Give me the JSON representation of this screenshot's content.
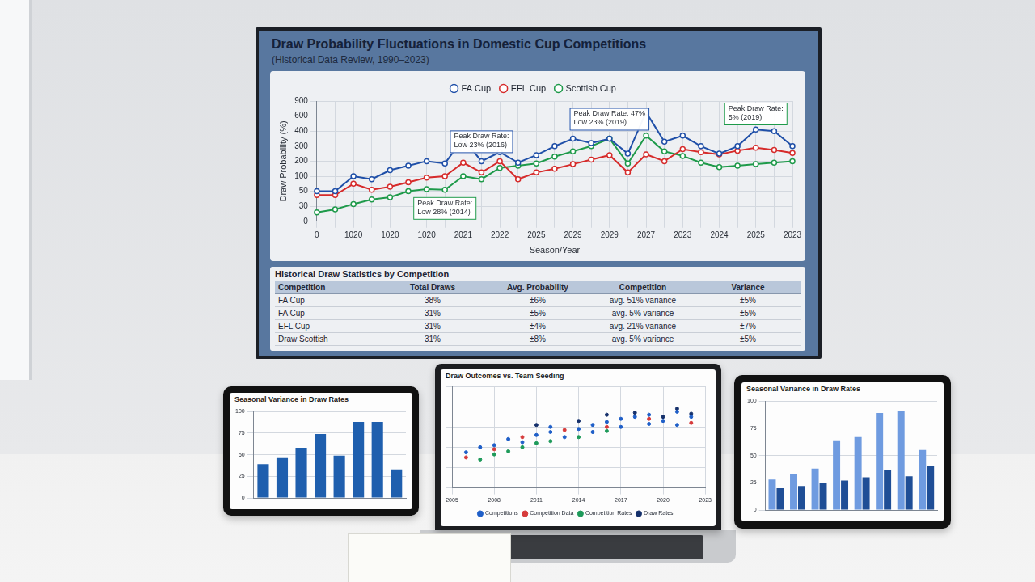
{
  "chart_data": [
    {
      "type": "line",
      "title": "Draw Probability Fluctuations in Domestic Cup Competitions",
      "subtitle": "(Historical Data Review, 1990–2023)",
      "x_label": "Season/Year",
      "y_label": "Draw Probability (%)",
      "categories": [
        "0",
        null,
        "1020",
        null,
        "1020",
        null,
        "1020",
        null,
        "2021",
        null,
        "2022",
        null,
        "2025",
        null,
        "2029",
        null,
        "2029",
        null,
        "2027",
        null,
        "2023",
        null,
        "2024",
        null,
        "2025",
        null,
        "2023"
      ],
      "series": [
        {
          "name": "FA Cup",
          "color": "#1f4fa8",
          "values": [
            50,
            50,
            100,
            90,
            140,
            170,
            200,
            185,
            350,
            200,
            260,
            190,
            240,
            300,
            350,
            320,
            350,
            250,
            675,
            330,
            370,
            300,
            250,
            300,
            420,
            400,
            300
          ]
        },
        {
          "name": "EFL Cup",
          "color": "#d62b2b",
          "values": [
            45,
            45,
            75,
            55,
            65,
            80,
            95,
            100,
            190,
            125,
            200,
            90,
            125,
            150,
            180,
            210,
            240,
            125,
            245,
            200,
            280,
            260,
            245,
            270,
            290,
            275,
            255
          ]
        },
        {
          "name": "Scottish Cup",
          "color": "#1e9a4a",
          "values": [
            18,
            24,
            33,
            39,
            42,
            50,
            57,
            55,
            100,
            90,
            155,
            170,
            185,
            230,
            265,
            300,
            350,
            185,
            370,
            265,
            235,
            190,
            160,
            170,
            180,
            190,
            200
          ]
        }
      ],
      "ylim": [
        0,
        900
      ],
      "yticks": [
        0,
        30,
        50,
        100,
        200,
        300,
        400,
        600,
        900
      ],
      "grid": true,
      "legend": "top",
      "marker": "circle",
      "annotations": [
        [
          "Peak Draw Rate:",
          "Low 23% (2016)"
        ],
        [
          "Peak Draw Rate: 47%",
          "Low 23% (2019)"
        ],
        [
          "Peak Draw Rate:",
          "5% (2019)"
        ],
        [
          "Peak Draw Rate:",
          "Low 28% (2014)"
        ]
      ]
    },
    {
      "type": "bar",
      "title": "Seasonal Variance in Draw Rates",
      "categories": [
        null,
        null,
        null,
        null,
        null,
        null,
        null,
        null
      ],
      "values": [
        39,
        47,
        58,
        74,
        49,
        88,
        88,
        33
      ],
      "color": "#1f5fae",
      "ylim": [
        0,
        100
      ],
      "yticks": [
        0,
        25,
        50,
        75,
        100
      ],
      "grid": true,
      "tick_labels": "y"
    },
    {
      "type": "scatter",
      "title": "Draw Outcomes vs. Team Seeding",
      "series": [
        {
          "name": "Competitions",
          "color": "#1f5fc8",
          "x": [
            2006,
            2007,
            2008,
            2009,
            2010,
            2011,
            2012,
            2012,
            2013,
            2014,
            2015,
            2015,
            2016,
            2017,
            2017,
            2018,
            2019,
            2019,
            2020,
            2021,
            2021,
            2022
          ],
          "values": [
            35,
            40,
            42,
            48,
            45,
            52,
            55,
            60,
            50,
            58,
            62,
            55,
            65,
            60,
            68,
            70,
            63,
            72,
            66,
            75,
            62,
            70
          ]
        },
        {
          "name": "Competition Data",
          "color": "#d63b3b",
          "x": [
            2006,
            2008,
            2010,
            2013,
            2016,
            2019,
            2022
          ],
          "values": [
            30,
            38,
            50,
            57,
            60,
            68,
            64
          ]
        },
        {
          "name": "Competition Rates",
          "color": "#1e9a5a",
          "x": [
            2007,
            2008,
            2009,
            2010,
            2011,
            2012,
            2014,
            2016
          ],
          "values": [
            28,
            33,
            36,
            40,
            44,
            46,
            50,
            56
          ]
        },
        {
          "name": "Draw Rates",
          "color": "#15306b",
          "x": [
            2011,
            2014,
            2016,
            2018,
            2020,
            2021,
            2022
          ],
          "values": [
            62,
            66,
            72,
            74,
            70,
            78,
            73
          ]
        }
      ],
      "xlim": [
        2005,
        2023
      ],
      "xticks": [
        2005,
        2008,
        2011,
        2014,
        2017,
        2020,
        2023
      ],
      "ylim": [
        0,
        100
      ],
      "yticks": [
        0,
        20,
        40,
        60,
        80,
        100
      ],
      "grid": true,
      "legend": "bottom",
      "marker": "circle",
      "tick_labels": "x"
    },
    {
      "type": "bar",
      "title": "Seasonal Variance in Draw Rates",
      "categories": [
        null,
        null,
        null,
        null,
        null,
        null,
        null,
        null
      ],
      "series": [
        {
          "color": "#6f9be0",
          "values": [
            28,
            33,
            38,
            64,
            67,
            89,
            91,
            55
          ]
        },
        {
          "color": "#1f4e96",
          "values": [
            20,
            22,
            25,
            27,
            30,
            37,
            31,
            40
          ]
        }
      ],
      "ylim": [
        0,
        100
      ],
      "yticks": [
        0,
        25,
        50,
        75,
        100
      ],
      "grid": true,
      "tick_labels": "y"
    }
  ],
  "table": {
    "title": "Historical Draw Statistics by Competition",
    "columns": [
      "Competition",
      "Total Draws",
      "Avg. Probability",
      "Competition",
      "Variance"
    ],
    "rows": [
      [
        "FA Cup",
        "38%",
        "±6%",
        "avg. 51% variance",
        "±5%"
      ],
      [
        "FA Cup",
        "31%",
        "±5%",
        "avg. 5% variance",
        "±5%"
      ],
      [
        "EFL Cup",
        "31%",
        "±4%",
        "avg. 21% variance",
        "±7%"
      ],
      [
        "Draw Scottish",
        "31%",
        "±8%",
        "avg. 5% variance",
        "±5%"
      ]
    ]
  }
}
